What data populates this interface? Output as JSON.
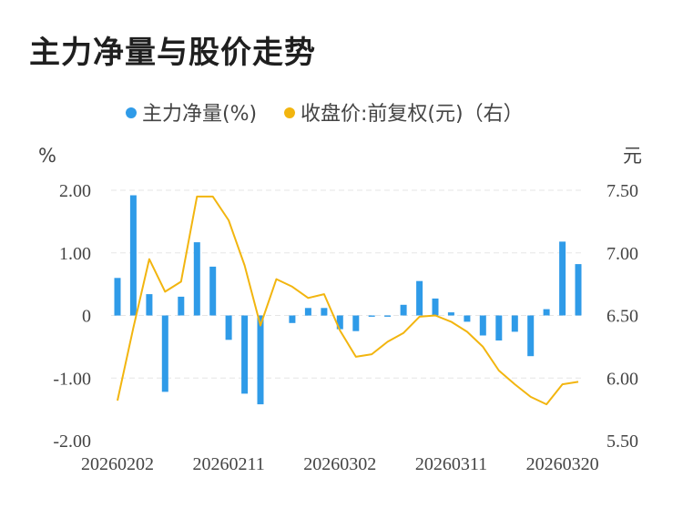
{
  "title": "主力净量与股价走势",
  "legend": {
    "bar_label": "主力净量(%)",
    "line_label": "收盘价:前复权(元)（右）"
  },
  "units": {
    "left": "%",
    "right": "元"
  },
  "colors": {
    "bar": "#2f9be8",
    "line": "#f2b50f",
    "grid": "#e6e6e6",
    "text": "#444444"
  },
  "chart_data": {
    "type": "bar",
    "title": "主力净量与股价走势",
    "x_tick_labels": [
      "20260202",
      "20260211",
      "20260302",
      "20260311",
      "20260320"
    ],
    "x_tick_indices": [
      0,
      7,
      14,
      21,
      28
    ],
    "left_axis": {
      "ticks": [
        "2.00",
        "1.00",
        "0",
        "-1.00",
        "-2.00"
      ],
      "ylim": [
        -2,
        2
      ]
    },
    "right_axis": {
      "ticks": [
        "7.50",
        "7.00",
        "6.50",
        "6.00",
        "5.50"
      ],
      "ylim": [
        5.5,
        7.5
      ]
    },
    "grid": true,
    "legend_position": "top-center",
    "series": [
      {
        "name": "主力净量(%)",
        "type": "bar",
        "axis": "left",
        "values": [
          0.6,
          1.92,
          0.34,
          -1.22,
          0.3,
          1.17,
          0.78,
          -0.39,
          -1.25,
          -1.42,
          0,
          -0.12,
          0.12,
          0.12,
          -0.22,
          -0.25,
          -0.02,
          -0.02,
          0.17,
          0.55,
          0.27,
          0.05,
          -0.1,
          -0.32,
          -0.4,
          -0.26,
          -0.65,
          0.1,
          1.18,
          0.82
        ]
      },
      {
        "name": "收盘价:前复权(元)（右）",
        "type": "line",
        "axis": "right",
        "values": [
          5.82,
          6.4,
          6.95,
          6.69,
          6.77,
          7.45,
          7.45,
          7.26,
          6.9,
          6.42,
          6.79,
          6.73,
          6.64,
          6.67,
          6.38,
          6.17,
          6.19,
          6.29,
          6.36,
          6.49,
          6.5,
          6.45,
          6.37,
          6.25,
          6.06,
          5.95,
          5.85,
          5.79,
          5.95,
          5.97
        ]
      }
    ]
  }
}
